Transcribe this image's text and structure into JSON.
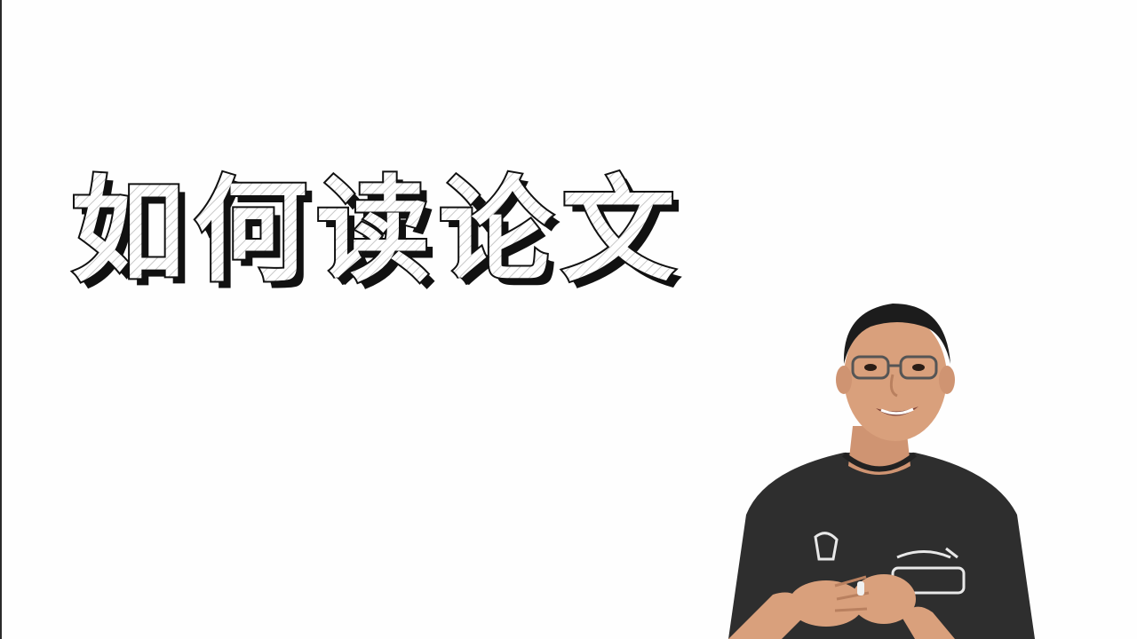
{
  "slide": {
    "title": "如何读论文",
    "presenter_label": "presenter-photo"
  },
  "colors": {
    "background": "#fefefe",
    "title_outline": "#111111",
    "title_fill": "#ffffff",
    "shirt": "#2e2e2e",
    "skin": "#d9a07c",
    "hair": "#1c1c1c"
  }
}
